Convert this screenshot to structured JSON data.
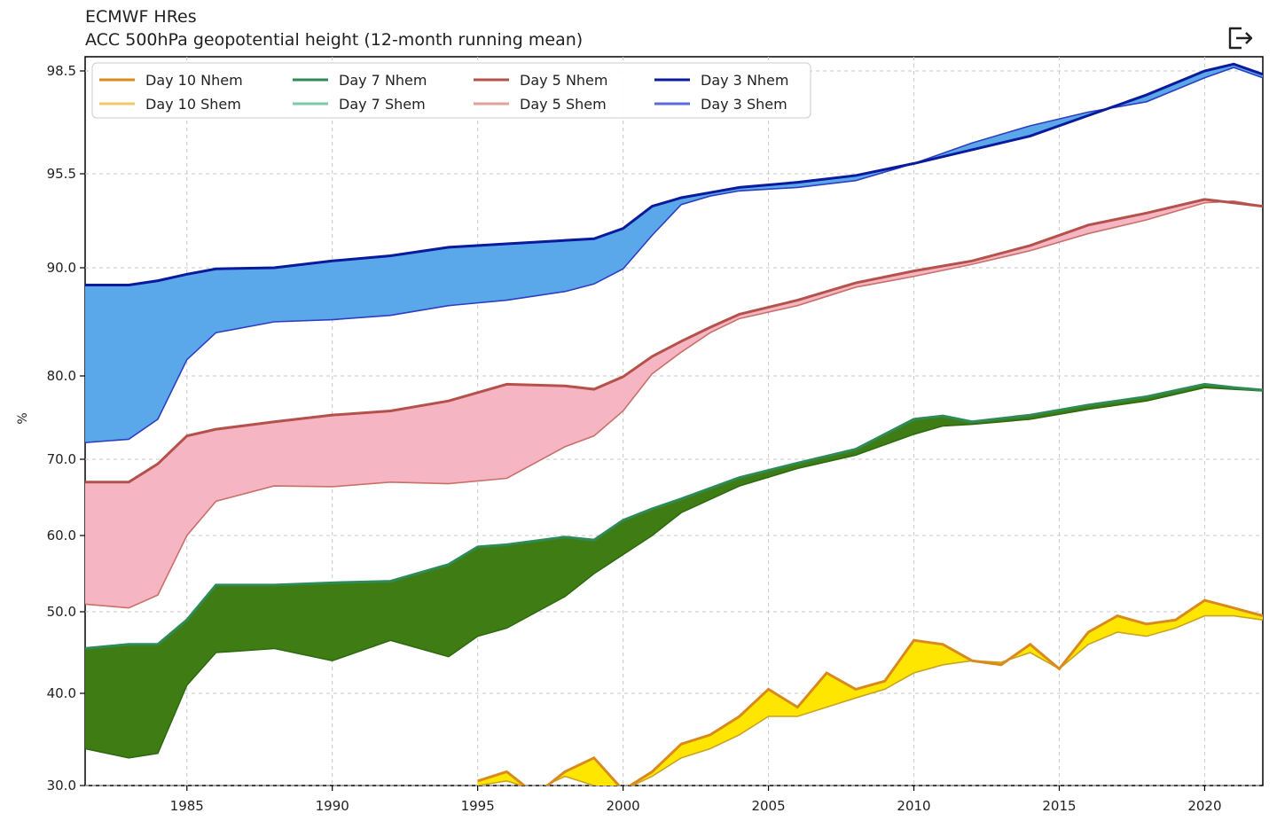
{
  "header": {
    "title": "ECMWF HRes",
    "subtitle": "ACC 500hPa geopotential height (12-month running mean)",
    "export_icon": "export-icon"
  },
  "chart_data": {
    "type": "area",
    "title": "ECMWF HRes",
    "subtitle": "ACC 500hPa geopotential height (12-month running mean)",
    "xlabel": "",
    "ylabel": "%",
    "xlim": [
      1981.5,
      2022.0
    ],
    "x_ticks": [
      1985,
      1990,
      1995,
      2000,
      2005,
      2010,
      2015,
      2020
    ],
    "y_ticks": [
      30.0,
      40.0,
      50.0,
      60.0,
      70.0,
      80.0,
      90.0,
      95.5,
      98.5
    ],
    "y_scale": "nonlinear (labels as printed)",
    "grid": true,
    "legend_position": "top-left",
    "legend": [
      {
        "label": "Day 10 Nhem",
        "color": "#d98a1f"
      },
      {
        "label": "Day 10 Shem",
        "color": "#f2c766"
      },
      {
        "label": "Day 7 Nhem",
        "color": "#2e8b57"
      },
      {
        "label": "Day 7 Shem",
        "color": "#7fc8a6"
      },
      {
        "label": "Day 5 Nhem",
        "color": "#b5514b"
      },
      {
        "label": "Day 5 Shem",
        "color": "#e0a09b"
      },
      {
        "label": "Day 3 Nhem",
        "color": "#0a1a9c"
      },
      {
        "label": "Day 3 Shem",
        "color": "#5a6ae0"
      }
    ],
    "bands": [
      {
        "name": "Day 3",
        "fill": "#5aa7ea",
        "nhem_color": "#0a1a9c",
        "shem_color": "#2d3fc0",
        "x": [
          1981.5,
          1983,
          1984,
          1985,
          1986,
          1988,
          1990,
          1992,
          1994,
          1996,
          1998,
          1999,
          2000,
          2001,
          2002,
          2003,
          2004,
          2006,
          2008,
          2010,
          2012,
          2014,
          2016,
          2018,
          2020,
          2021,
          2022
        ],
        "nhem": [
          88.4,
          88.4,
          88.8,
          89.4,
          89.9,
          90.0,
          90.4,
          90.7,
          91.2,
          91.4,
          91.6,
          91.7,
          92.3,
          93.6,
          94.1,
          94.4,
          94.7,
          95.0,
          95.4,
          95.8,
          96.2,
          96.6,
          97.2,
          97.8,
          98.5,
          98.7,
          98.4
        ],
        "shem": [
          72.0,
          72.4,
          74.8,
          81.5,
          84.0,
          85.0,
          85.2,
          85.6,
          86.5,
          87.0,
          87.8,
          88.5,
          89.9,
          91.9,
          93.7,
          94.2,
          94.5,
          94.7,
          95.1,
          95.8,
          96.4,
          96.9,
          97.3,
          97.6,
          98.3,
          98.6,
          98.3
        ]
      },
      {
        "name": "Day 5",
        "fill": "#f5b5c2",
        "nhem_color": "#b5514b",
        "shem_color": "#c8706a",
        "x": [
          1981.5,
          1983,
          1984,
          1985,
          1986,
          1988,
          1990,
          1992,
          1994,
          1996,
          1998,
          1999,
          2000,
          2001,
          2002,
          2003,
          2004,
          2006,
          2008,
          2010,
          2012,
          2014,
          2016,
          2018,
          2020,
          2021,
          2022
        ],
        "nhem": [
          67.0,
          67.0,
          69.4,
          72.8,
          73.6,
          74.5,
          75.3,
          75.8,
          77.0,
          79.0,
          78.8,
          78.4,
          79.9,
          81.8,
          83.2,
          84.5,
          85.7,
          87.0,
          88.6,
          89.7,
          90.4,
          91.3,
          92.5,
          93.2,
          94.0,
          93.8,
          93.6
        ],
        "shem": [
          51.0,
          50.5,
          52.2,
          60.0,
          64.5,
          66.5,
          66.4,
          67.0,
          66.8,
          67.5,
          71.5,
          72.8,
          75.8,
          80.2,
          82.2,
          84.0,
          85.3,
          86.5,
          88.2,
          89.2,
          90.2,
          91.0,
          92.0,
          92.8,
          93.8,
          93.9,
          93.6
        ]
      },
      {
        "name": "Day 7",
        "fill": "#3f7d14",
        "nhem_color": "#2e8b57",
        "shem_color": "#2e6b10",
        "x": [
          1981.5,
          1983,
          1984,
          1985,
          1986,
          1988,
          1990,
          1992,
          1994,
          1995,
          1996,
          1998,
          1999,
          2000,
          2001,
          2002,
          2004,
          2006,
          2008,
          2010,
          2011,
          2012,
          2014,
          2016,
          2018,
          2020,
          2021,
          2022
        ],
        "nhem": [
          45.5,
          46.0,
          46.0,
          49.0,
          53.5,
          53.5,
          53.8,
          54.0,
          56.2,
          58.5,
          58.8,
          59.8,
          59.4,
          62.0,
          63.5,
          64.8,
          67.6,
          69.5,
          71.2,
          74.8,
          75.2,
          74.5,
          75.3,
          76.5,
          77.5,
          79.0,
          78.6,
          78.3
        ],
        "shem": [
          34.0,
          33.0,
          33.5,
          41.0,
          45.0,
          45.5,
          44.0,
          46.5,
          44.5,
          47.0,
          48.0,
          52.0,
          55.0,
          57.5,
          60.0,
          63.0,
          66.5,
          68.8,
          70.5,
          73.0,
          74.0,
          74.2,
          74.8,
          76.0,
          77.0,
          78.6,
          78.4,
          78.2
        ]
      },
      {
        "name": "Day 10",
        "fill": "#ffe600",
        "nhem_color": "#d98a1f",
        "shem_color": "#c8a420",
        "x": [
          1995.0,
          1996,
          1997,
          1998,
          1999,
          2000,
          2001,
          2002,
          2003,
          2004,
          2005,
          2006,
          2007,
          2008,
          2009,
          2010,
          2011,
          2012,
          2013,
          2014,
          2015,
          2016,
          2017,
          2018,
          2019,
          2020,
          2021,
          2022
        ],
        "nhem": [
          30.5,
          31.5,
          29.0,
          31.5,
          33.0,
          29.5,
          31.5,
          34.5,
          35.5,
          37.5,
          40.5,
          38.5,
          42.5,
          40.5,
          41.5,
          46.5,
          46.0,
          44.0,
          43.5,
          46.0,
          43.0,
          47.5,
          49.5,
          48.5,
          49.0,
          51.5,
          50.5,
          49.5
        ],
        "shem": [
          30.0,
          30.5,
          29.5,
          31.0,
          30.0,
          29.5,
          31.0,
          33.0,
          34.0,
          35.5,
          37.5,
          37.5,
          38.5,
          39.5,
          40.5,
          42.5,
          43.5,
          44.0,
          43.8,
          45.0,
          43.0,
          46.0,
          47.5,
          47.0,
          48.0,
          49.5,
          49.5,
          49.0
        ]
      }
    ]
  }
}
